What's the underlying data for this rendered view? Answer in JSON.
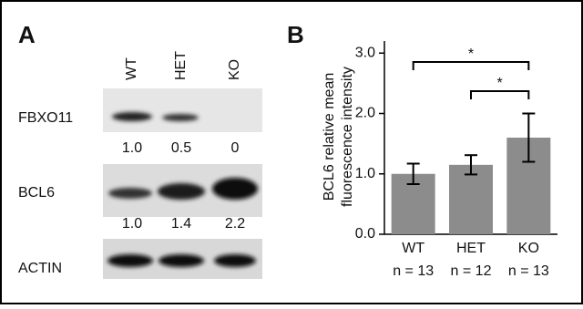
{
  "panel_a": {
    "label": "A",
    "lanes": [
      "WT",
      "HET",
      "KO"
    ],
    "rows": [
      {
        "name": "FBXO11",
        "quantification": [
          "1.0",
          "0.5",
          "0"
        ]
      },
      {
        "name": "BCL6",
        "quantification": [
          "1.0",
          "1.4",
          "2.2"
        ]
      },
      {
        "name": "ACTIN"
      }
    ]
  },
  "chart_data": {
    "type": "bar",
    "panel_label": "B",
    "ylabel": [
      "BCL6 relative mean",
      "fluorescence intensity"
    ],
    "categories": [
      "WT",
      "HET",
      "KO"
    ],
    "n_labels": [
      "n = 13",
      "n = 12",
      "n = 13"
    ],
    "values": [
      1.0,
      1.15,
      1.6
    ],
    "errors": [
      0.17,
      0.16,
      0.4
    ],
    "color": "#8c8c8c",
    "ylim": [
      0,
      3.2
    ],
    "yticks": [
      {
        "value": 0,
        "label": "0.0"
      },
      {
        "value": 1,
        "label": "1.0"
      },
      {
        "value": 2,
        "label": "2.0"
      },
      {
        "value": 3,
        "label": "3.0"
      }
    ],
    "annotations": [
      {
        "from": 0,
        "to": 2,
        "label": "*"
      },
      {
        "from": 1,
        "to": 2,
        "label": "*"
      }
    ]
  }
}
